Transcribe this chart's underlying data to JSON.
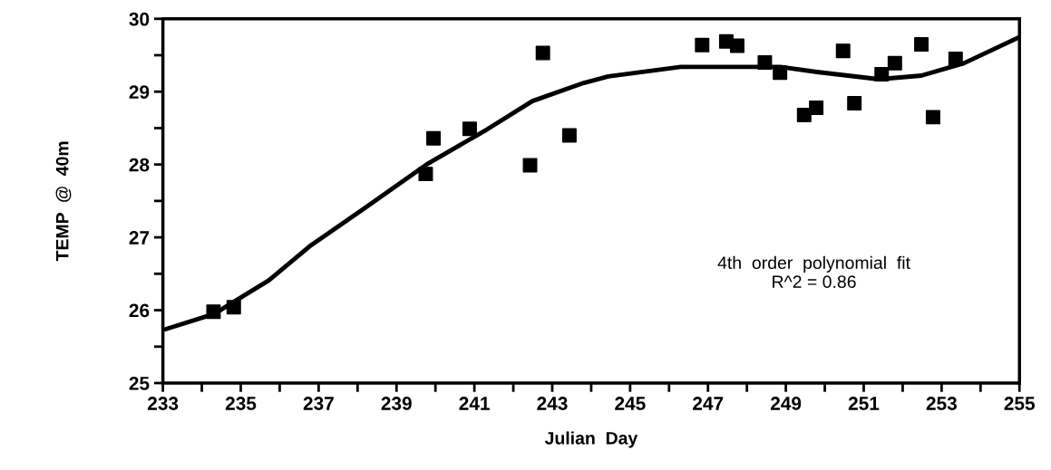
{
  "chart_data": {
    "type": "scatter",
    "xlabel": "Julian  Day",
    "ylabel": "TEMP  @  40m",
    "annotations": [
      "4th  order  polynomial  fit\nR^2 = 0.86"
    ],
    "xlim": [
      233,
      255
    ],
    "ylim": [
      25,
      30
    ],
    "grid": false,
    "legend": false,
    "marker": "square",
    "xticks": [
      233,
      {
        "value": 234,
        "label": null
      },
      235,
      {
        "value": 236,
        "label": null
      },
      237,
      {
        "value": 238,
        "label": null
      },
      239,
      {
        "value": 240,
        "label": null
      },
      241,
      {
        "value": 242,
        "label": null
      },
      243,
      {
        "value": 244,
        "label": null
      },
      245,
      {
        "value": 246,
        "label": null
      },
      247,
      {
        "value": 248,
        "label": null
      },
      249,
      {
        "value": 250,
        "label": null
      },
      251,
      {
        "value": 252,
        "label": null
      },
      253,
      {
        "value": 254,
        "label": null
      },
      255
    ],
    "yticks": [
      25,
      {
        "value": 25.5,
        "label": null
      },
      26,
      {
        "value": 26.5,
        "label": null
      },
      27,
      {
        "value": 27.5,
        "label": null
      },
      28,
      {
        "value": 28.5,
        "label": null
      },
      29,
      {
        "value": 29.5,
        "label": null
      },
      30
    ],
    "series": [
      {
        "color": "#000000",
        "x": [
          234.3,
          234.82,
          239.75,
          239.95,
          240.88,
          242.43,
          242.76,
          243.44,
          246.85,
          247.47,
          247.75,
          248.46,
          248.85,
          249.47,
          249.78,
          250.47,
          250.76,
          251.46,
          251.8,
          252.48,
          252.78,
          253.36
        ],
        "values": [
          25.98,
          26.04,
          27.87,
          28.36,
          28.49,
          27.99,
          29.53,
          28.4,
          29.64,
          29.69,
          29.63,
          29.4,
          29.26,
          28.68,
          28.78,
          29.56,
          28.84,
          29.24,
          29.39,
          29.65,
          28.65,
          29.45
        ]
      },
      {
        "type": "line",
        "color": "#000000",
        "line_style": "solid",
        "marker": "none",
        "x": [
          233.07,
          234.32,
          235.72,
          236.8,
          238.21,
          239.77,
          241.32,
          242.49,
          243.81,
          244.44,
          246.3,
          248.86,
          249.8,
          251.39,
          252.48,
          253.57,
          255.0
        ],
        "values": [
          25.74,
          25.95,
          26.41,
          26.89,
          27.41,
          28.0,
          28.48,
          28.87,
          29.12,
          29.21,
          29.34,
          29.34,
          29.27,
          29.17,
          29.22,
          29.39,
          29.75
        ]
      }
    ]
  }
}
